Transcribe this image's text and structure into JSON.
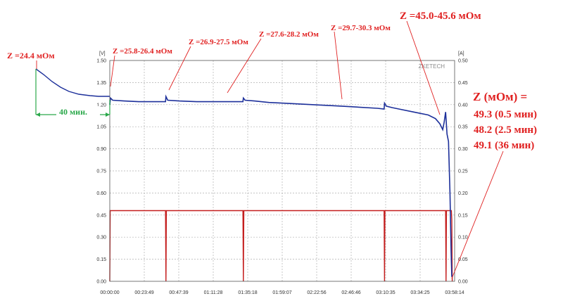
{
  "chart_data": {
    "type": "line",
    "title": "",
    "watermark": "ZKETECH",
    "left_axis": {
      "unit": "[V]",
      "range": [
        0.0,
        1.5
      ],
      "ticks": [
        "0.00",
        "0.15",
        "0.30",
        "0.45",
        "0.60",
        "0.75",
        "0.90",
        "1.05",
        "1.20",
        "1.35",
        "1.50"
      ]
    },
    "right_axis": {
      "unit": "[A]",
      "range": [
        0.0,
        0.5
      ],
      "ticks": [
        "0.00",
        "0.05",
        "0.10",
        "0.15",
        "0.20",
        "0.25",
        "0.30",
        "0.35",
        "0.40",
        "0.45",
        "0.50"
      ]
    },
    "x_axis": {
      "range_minutes": [
        0,
        238.23
      ],
      "ticks": [
        "00:00:00",
        "00:23:49",
        "00:47:39",
        "01:11:28",
        "01:35:18",
        "01:59:07",
        "02:22:56",
        "02:46:46",
        "03:10:35",
        "03:34:25",
        "03:58:14"
      ]
    },
    "grid": true,
    "series": [
      {
        "axis": "left",
        "color": "#1c2f9a",
        "x": [
          0,
          0.5,
          2,
          10,
          20,
          30,
          38.5,
          38.8,
          40,
          48,
          60,
          80,
          92,
          92.3,
          93.5,
          100,
          110,
          120,
          140,
          160,
          185,
          189.5,
          189.8,
          191,
          195,
          200,
          210,
          220,
          225,
          228,
          230,
          231,
          232,
          233,
          234,
          235,
          235.8,
          236.3
        ],
        "values": [
          1.2,
          1.245,
          1.23,
          1.225,
          1.22,
          1.22,
          1.22,
          1.255,
          1.23,
          1.225,
          1.22,
          1.22,
          1.22,
          1.245,
          1.23,
          1.225,
          1.215,
          1.21,
          1.2,
          1.19,
          1.175,
          1.17,
          1.21,
          1.19,
          1.18,
          1.17,
          1.15,
          1.13,
          1.105,
          1.07,
          1.03,
          1.08,
          1.15,
          1.0,
          0.95,
          0.6,
          0.2,
          0.03
        ]
      },
      {
        "axis": "right",
        "color": "#c41e1e",
        "x": [
          0,
          0.3,
          0.6,
          38.5,
          38.8,
          39.1,
          92,
          92.3,
          92.6,
          189.5,
          189.8,
          190.1,
          232,
          232.3,
          232.6,
          236,
          236.3,
          236.6
        ],
        "values": [
          0.0,
          0.16,
          0.16,
          0.16,
          0.0,
          0.16,
          0.16,
          0.0,
          0.16,
          0.16,
          0.0,
          0.16,
          0.16,
          0.0,
          0.16,
          0.16,
          0.14,
          0.0
        ]
      }
    ],
    "annotations": [
      {
        "text": "Z =24.4 мОм",
        "color": "#e02020"
      },
      {
        "text": "Z =25.8-26.4 мОм",
        "color": "#e02020"
      },
      {
        "text": "Z =26.9-27.5 мОм",
        "color": "#e02020"
      },
      {
        "text": "Z =27.6-28.2 мОм",
        "color": "#e02020"
      },
      {
        "text": "Z =29.7-30.3 мОм",
        "color": "#e02020"
      },
      {
        "text": "Z =45.0-45.6 мОм",
        "color": "#e02020"
      },
      {
        "text": "40 мин.",
        "color": "#2aa84a"
      }
    ],
    "z_summary": {
      "header": "Z (мОм) =",
      "lines": [
        "49.3 (0.5 мин)",
        "48.2 (2.5 мин)",
        "49.1 (36 мин)"
      ]
    }
  }
}
